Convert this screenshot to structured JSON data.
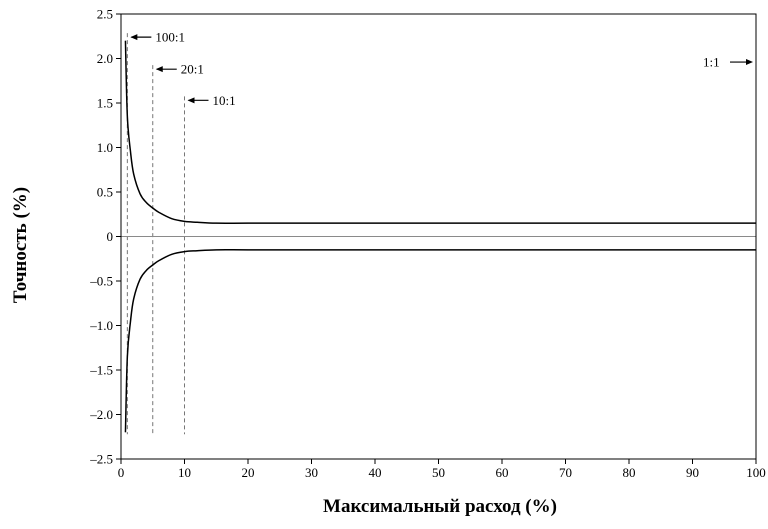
{
  "chart_data": {
    "type": "line",
    "title": "",
    "xlabel": "Максимальный расход (%)",
    "ylabel": "Точность (%)",
    "xlim": [
      0,
      100
    ],
    "ylim": [
      -2.5,
      2.5
    ],
    "x_ticks": [
      0,
      10,
      20,
      30,
      40,
      50,
      60,
      70,
      80,
      90,
      100
    ],
    "x_tick_labels": [
      "0",
      "10",
      "20",
      "30",
      "40",
      "50",
      "60",
      "70",
      "80",
      "90",
      "100"
    ],
    "y_ticks": [
      2.5,
      2.0,
      1.5,
      1.0,
      0.5,
      0,
      -0.5,
      -1.0,
      -1.5,
      -2.0,
      -2.5
    ],
    "y_tick_labels": [
      "2.5",
      "2.0",
      "1.5",
      "1.0",
      "0.5",
      "0",
      "–0.5",
      "–1.0",
      "–1.5",
      "–2.0",
      "–2.5"
    ],
    "grid": false,
    "zero_line": true,
    "series": [
      {
        "color": "#000000",
        "x": [
          0.7,
          1,
          1.5,
          2,
          3,
          4,
          5,
          6,
          8,
          10,
          12,
          15,
          20,
          30,
          50,
          100
        ],
        "y": [
          2.2,
          1.35,
          0.95,
          0.7,
          0.48,
          0.38,
          0.32,
          0.27,
          0.2,
          0.17,
          0.16,
          0.15,
          0.15,
          0.15,
          0.15,
          0.15
        ]
      },
      {
        "color": "#000000",
        "x": [
          0.7,
          1,
          1.5,
          2,
          3,
          4,
          5,
          6,
          8,
          10,
          12,
          15,
          20,
          30,
          50,
          100
        ],
        "y": [
          -2.2,
          -1.35,
          -0.95,
          -0.7,
          -0.48,
          -0.38,
          -0.32,
          -0.27,
          -0.2,
          -0.17,
          -0.16,
          -0.15,
          -0.15,
          -0.15,
          -0.15,
          -0.15
        ]
      }
    ],
    "annotations": [
      {
        "label": "100:1",
        "x": 1,
        "arrow_y": 2.24,
        "line": true
      },
      {
        "label": "20:1",
        "x": 5,
        "arrow_y": 1.88,
        "line": true
      },
      {
        "label": "10:1",
        "x": 10,
        "arrow_y": 1.53,
        "line": true
      },
      {
        "label": "1:1",
        "x": 100,
        "arrow_y": 1.96,
        "line": false
      }
    ]
  }
}
